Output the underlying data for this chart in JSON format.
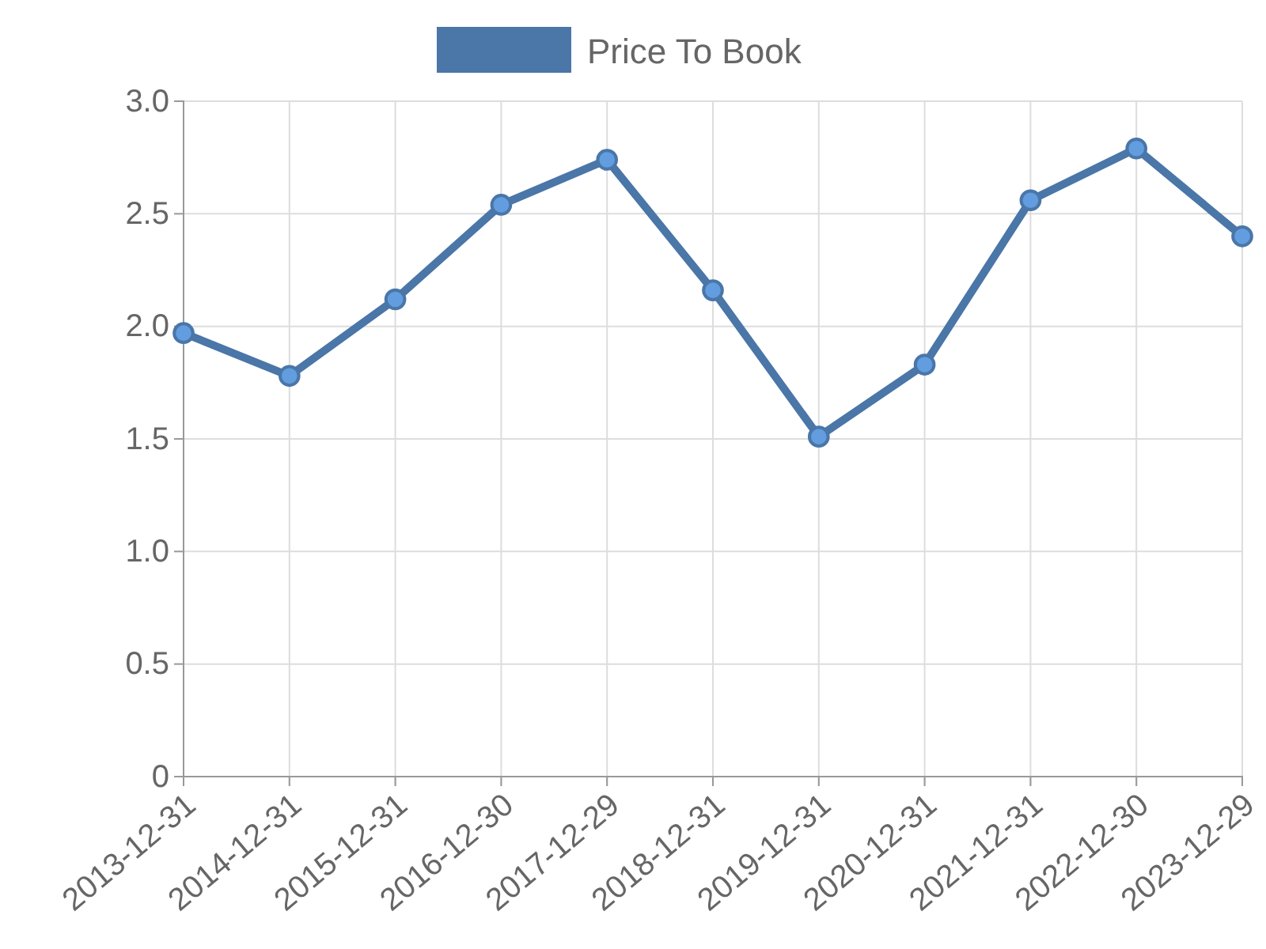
{
  "chart_data": {
    "type": "line",
    "categories": [
      "2013-12-31",
      "2014-12-31",
      "2015-12-31",
      "2016-12-30",
      "2017-12-29",
      "2018-12-31",
      "2019-12-31",
      "2020-12-31",
      "2021-12-31",
      "2022-12-30",
      "2023-12-29"
    ],
    "series": [
      {
        "name": "Price To Book",
        "color": "#4a76a8",
        "values": [
          1.97,
          1.78,
          2.12,
          2.54,
          2.74,
          2.16,
          1.51,
          1.83,
          2.56,
          2.79,
          2.4
        ]
      }
    ],
    "ylim": [
      0,
      3
    ],
    "yticks": [
      0,
      0.5,
      {
        "value": 1,
        "label": "1.0"
      },
      1.5,
      {
        "value": 2,
        "label": "2.0"
      },
      2.5,
      {
        "value": 3,
        "label": "3.0"
      }
    ],
    "grid": true,
    "legend": "top",
    "marker": "circle",
    "line_style": "solid"
  }
}
